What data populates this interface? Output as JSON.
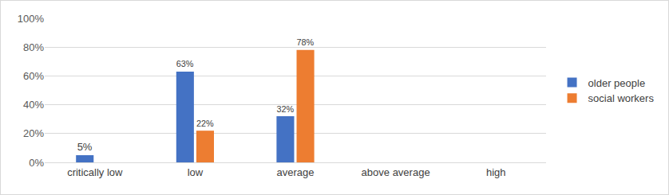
{
  "chart_data": {
    "type": "bar",
    "categories": [
      "critically low",
      "low",
      "average",
      "above average",
      "high"
    ],
    "series": [
      {
        "name": "older people",
        "color": "#4472c4",
        "values": [
          5,
          63,
          32,
          null,
          null
        ],
        "value_labels": [
          "5%",
          "63%",
          "32%",
          null,
          null
        ]
      },
      {
        "name": "social workers",
        "color": "#ed7d31",
        "values": [
          null,
          22,
          78,
          null,
          null
        ],
        "value_labels": [
          null,
          "22%",
          "78%",
          null,
          null
        ]
      }
    ],
    "ylim": [
      0,
      100
    ],
    "yticks": [
      {
        "value": 0,
        "label": "0%"
      },
      {
        "value": 20,
        "label": "20%"
      },
      {
        "value": 40,
        "label": "40%"
      },
      {
        "value": 60,
        "label": "60%"
      },
      {
        "value": 80,
        "label": "80%"
      },
      {
        "value": 100,
        "label": "100%"
      }
    ],
    "grid": true,
    "legend": "right",
    "data_labels": true
  }
}
